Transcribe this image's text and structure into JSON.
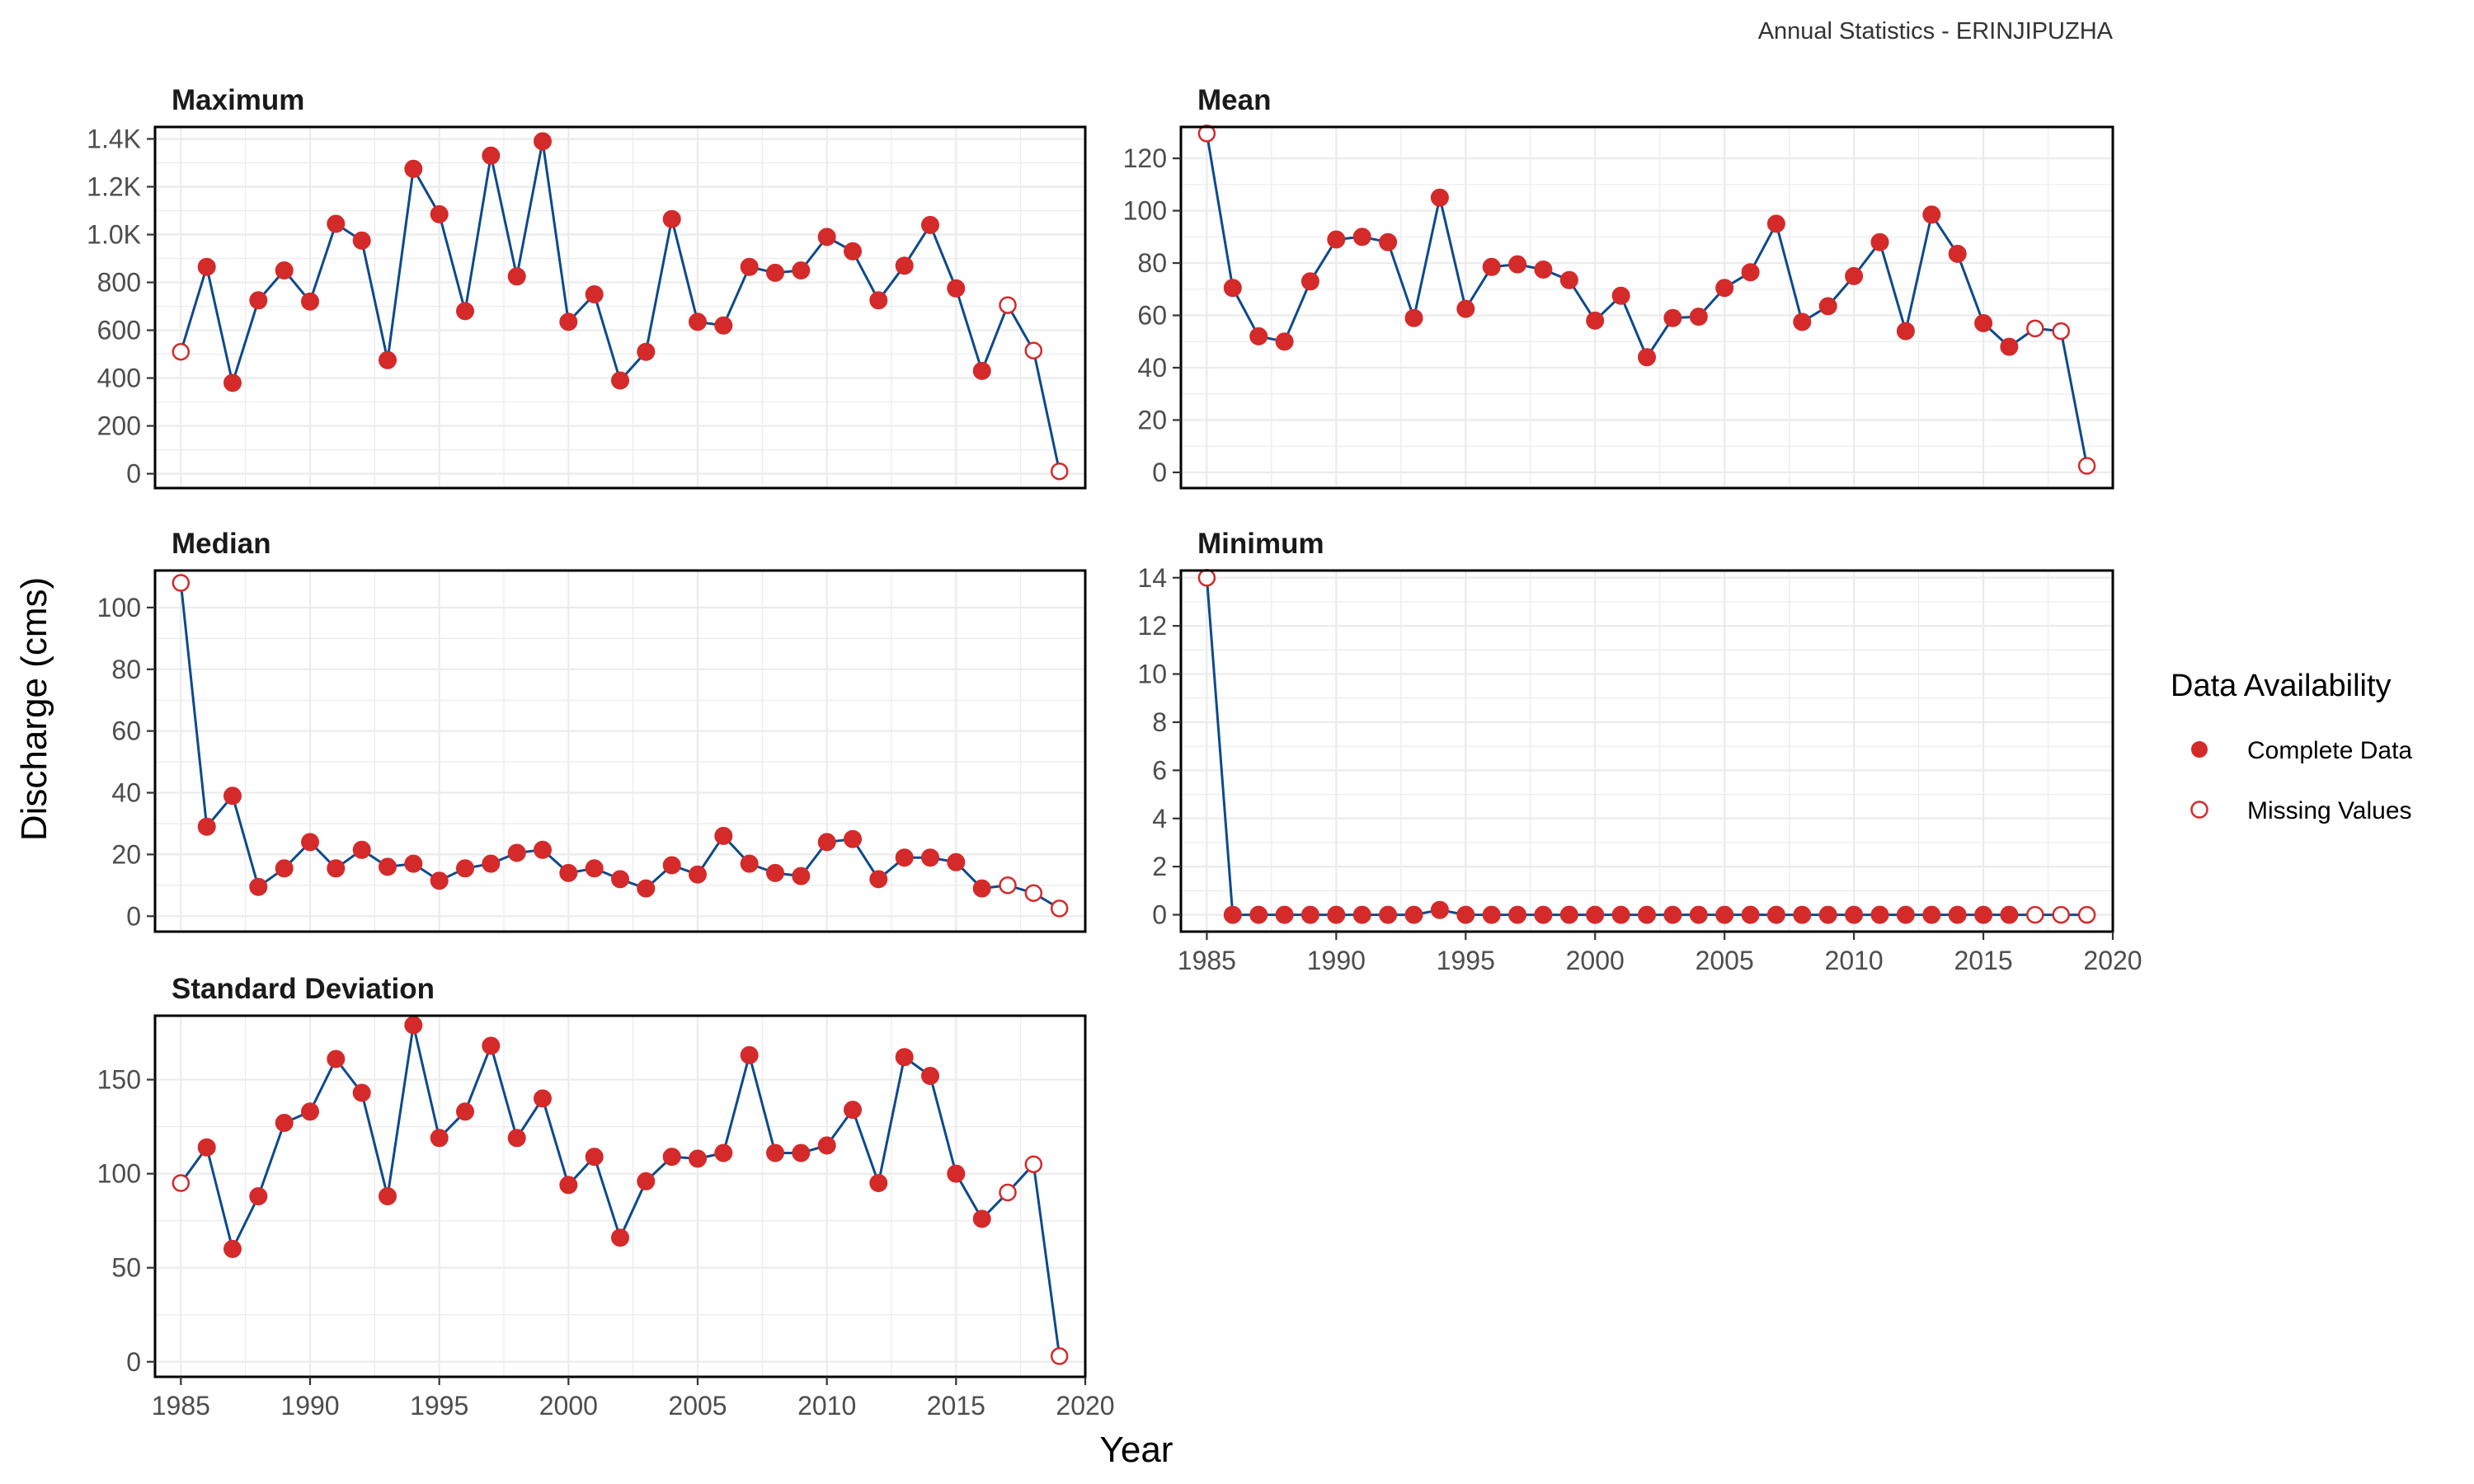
{
  "caption": "Annual Statistics - ERINJIPUZHA",
  "x_axis_title": "Year",
  "y_axis_title": "Discharge (cms)",
  "legend": {
    "title": "Data Availability",
    "items": [
      {
        "label": "Complete Data",
        "style": "filled"
      },
      {
        "label": "Missing Values",
        "style": "open"
      }
    ]
  },
  "colors": {
    "line": "#0d4a8a",
    "point": "#d42a2a",
    "grid": "#ebebeb",
    "border": "#000000"
  },
  "chart_data": [
    {
      "type": "line",
      "title": "Maximum",
      "xlim": [
        1984,
        2020
      ],
      "ylim": [
        -60,
        1450
      ],
      "x_ticks": [
        1985,
        1990,
        1995,
        2000,
        2005,
        2010,
        2015,
        2020
      ],
      "y_ticks": [
        0,
        200,
        400,
        600,
        800,
        1000,
        1200,
        1400
      ],
      "y_tick_labels": [
        "0",
        "200",
        "400",
        "600",
        "800",
        "1.0K",
        "1.2K",
        "1.4K"
      ],
      "x": [
        1985,
        1986,
        1987,
        1988,
        1989,
        1990,
        1991,
        1992,
        1993,
        1994,
        1995,
        1996,
        1997,
        1998,
        1999,
        2000,
        2001,
        2002,
        2003,
        2004,
        2005,
        2006,
        2007,
        2008,
        2009,
        2010,
        2011,
        2012,
        2013,
        2014,
        2015,
        2016,
        2017,
        2018,
        2019
      ],
      "values": [
        510,
        865,
        380,
        725,
        850,
        720,
        1045,
        975,
        475,
        1275,
        1085,
        680,
        1330,
        825,
        1390,
        635,
        750,
        390,
        510,
        1065,
        635,
        620,
        865,
        840,
        850,
        990,
        930,
        725,
        870,
        1040,
        775,
        430,
        705,
        515,
        10
      ],
      "missing": [
        true,
        false,
        false,
        false,
        false,
        false,
        false,
        false,
        false,
        false,
        false,
        false,
        false,
        false,
        false,
        false,
        false,
        false,
        false,
        false,
        false,
        false,
        false,
        false,
        false,
        false,
        false,
        false,
        false,
        false,
        false,
        false,
        true,
        true,
        true
      ]
    },
    {
      "type": "line",
      "title": "Mean",
      "xlim": [
        1984,
        2020
      ],
      "ylim": [
        -6,
        132
      ],
      "x_ticks": [
        1985,
        1990,
        1995,
        2000,
        2005,
        2010,
        2015,
        2020
      ],
      "y_ticks": [
        0,
        20,
        40,
        60,
        80,
        100,
        120
      ],
      "y_tick_labels": [
        "0",
        "20",
        "40",
        "60",
        "80",
        "100",
        "120"
      ],
      "x": [
        1985,
        1986,
        1987,
        1988,
        1989,
        1990,
        1991,
        1992,
        1993,
        1994,
        1995,
        1996,
        1997,
        1998,
        1999,
        2000,
        2001,
        2002,
        2003,
        2004,
        2005,
        2006,
        2007,
        2008,
        2009,
        2010,
        2011,
        2012,
        2013,
        2014,
        2015,
        2016,
        2017,
        2018,
        2019
      ],
      "values": [
        129.5,
        70.5,
        52,
        50,
        73,
        89,
        90,
        88,
        59,
        105,
        62.5,
        78.5,
        79.5,
        77.5,
        73.5,
        58,
        67.5,
        44,
        59,
        59.5,
        70.5,
        76.5,
        95,
        57.5,
        63.5,
        75,
        88,
        54,
        98.5,
        83.5,
        57,
        48,
        55,
        54,
        2.5
      ],
      "missing": [
        true,
        false,
        false,
        false,
        false,
        false,
        false,
        false,
        false,
        false,
        false,
        false,
        false,
        false,
        false,
        false,
        false,
        false,
        false,
        false,
        false,
        false,
        false,
        false,
        false,
        false,
        false,
        false,
        false,
        false,
        false,
        false,
        true,
        true,
        true
      ]
    },
    {
      "type": "line",
      "title": "Median",
      "xlim": [
        1984,
        2020
      ],
      "ylim": [
        -5,
        112
      ],
      "x_ticks": [
        1985,
        1990,
        1995,
        2000,
        2005,
        2010,
        2015,
        2020
      ],
      "y_ticks": [
        0,
        20,
        40,
        60,
        80,
        100
      ],
      "y_tick_labels": [
        "0",
        "20",
        "40",
        "60",
        "80",
        "100"
      ],
      "x": [
        1985,
        1986,
        1987,
        1988,
        1989,
        1990,
        1991,
        1992,
        1993,
        1994,
        1995,
        1996,
        1997,
        1998,
        1999,
        2000,
        2001,
        2002,
        2003,
        2004,
        2005,
        2006,
        2007,
        2008,
        2009,
        2010,
        2011,
        2012,
        2013,
        2014,
        2015,
        2016,
        2017,
        2018,
        2019
      ],
      "values": [
        108,
        29,
        39,
        9.5,
        15.5,
        24,
        15.5,
        21.5,
        16,
        17,
        11.5,
        15.5,
        17,
        20.5,
        21.5,
        14,
        15.5,
        12,
        9,
        16.5,
        13.5,
        26,
        17,
        14,
        13,
        24,
        25,
        12,
        19,
        19,
        17.5,
        9,
        10,
        7.5,
        2.5
      ],
      "missing": [
        true,
        false,
        false,
        false,
        false,
        false,
        false,
        false,
        false,
        false,
        false,
        false,
        false,
        false,
        false,
        false,
        false,
        false,
        false,
        false,
        false,
        false,
        false,
        false,
        false,
        false,
        false,
        false,
        false,
        false,
        false,
        false,
        true,
        true,
        true
      ]
    },
    {
      "type": "line",
      "title": "Minimum",
      "xlim": [
        1984,
        2020
      ],
      "ylim": [
        -0.7,
        14.3
      ],
      "x_ticks": [
        1985,
        1990,
        1995,
        2000,
        2005,
        2010,
        2015,
        2020
      ],
      "y_ticks": [
        0,
        2,
        4,
        6,
        8,
        10,
        12,
        14
      ],
      "y_tick_labels": [
        "0",
        "2",
        "4",
        "6",
        "8",
        "10",
        "12",
        "14"
      ],
      "x": [
        1985,
        1986,
        1987,
        1988,
        1989,
        1990,
        1991,
        1992,
        1993,
        1994,
        1995,
        1996,
        1997,
        1998,
        1999,
        2000,
        2001,
        2002,
        2003,
        2004,
        2005,
        2006,
        2007,
        2008,
        2009,
        2010,
        2011,
        2012,
        2013,
        2014,
        2015,
        2016,
        2017,
        2018,
        2019
      ],
      "values": [
        14,
        0,
        0,
        0,
        0,
        0,
        0,
        0,
        0,
        0.2,
        0,
        0,
        0,
        0,
        0,
        0,
        0,
        0,
        0,
        0,
        0,
        0,
        0,
        0,
        0,
        0,
        0,
        0,
        0,
        0,
        0,
        0,
        0,
        0,
        0
      ],
      "missing": [
        true,
        false,
        false,
        false,
        false,
        false,
        false,
        false,
        false,
        false,
        false,
        false,
        false,
        false,
        false,
        false,
        false,
        false,
        false,
        false,
        false,
        false,
        false,
        false,
        false,
        false,
        false,
        false,
        false,
        false,
        false,
        false,
        true,
        true,
        true
      ]
    },
    {
      "type": "line",
      "title": "Standard Deviation",
      "xlim": [
        1984,
        2020
      ],
      "ylim": [
        -8,
        184
      ],
      "x_ticks": [
        1985,
        1990,
        1995,
        2000,
        2005,
        2010,
        2015,
        2020
      ],
      "y_ticks": [
        0,
        50,
        100,
        150
      ],
      "y_tick_labels": [
        "0",
        "50",
        "100",
        "150"
      ],
      "x": [
        1985,
        1986,
        1987,
        1988,
        1989,
        1990,
        1991,
        1992,
        1993,
        1994,
        1995,
        1996,
        1997,
        1998,
        1999,
        2000,
        2001,
        2002,
        2003,
        2004,
        2005,
        2006,
        2007,
        2008,
        2009,
        2010,
        2011,
        2012,
        2013,
        2014,
        2015,
        2016,
        2017,
        2018,
        2019
      ],
      "values": [
        95,
        114,
        60,
        88,
        127,
        133,
        161,
        143,
        88,
        179,
        119,
        133,
        168,
        119,
        140,
        94,
        109,
        66,
        96,
        109,
        108,
        111,
        163,
        111,
        111,
        115,
        134,
        95,
        162,
        152,
        100,
        76,
        90,
        105,
        3
      ],
      "missing": [
        true,
        false,
        false,
        false,
        false,
        false,
        false,
        false,
        false,
        false,
        false,
        false,
        false,
        false,
        false,
        false,
        false,
        false,
        false,
        false,
        false,
        false,
        false,
        false,
        false,
        false,
        false,
        false,
        false,
        false,
        false,
        false,
        true,
        true,
        true
      ]
    }
  ]
}
